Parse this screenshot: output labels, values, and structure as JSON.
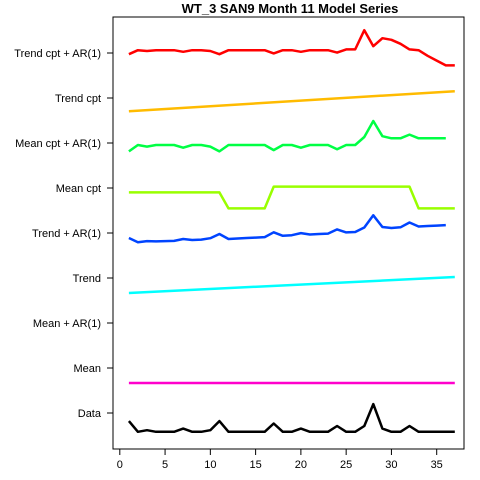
{
  "chart_data": {
    "type": "line",
    "title": "WT_3 SAN9 Month 11 Model Series",
    "xlabel": "",
    "ylabel": "",
    "xlim": [
      0,
      38
    ],
    "xticks": [
      0,
      5,
      10,
      15,
      20,
      25,
      30,
      35
    ],
    "grid": false,
    "series": [
      {
        "name": "Data",
        "color": "#000000",
        "x": [
          1,
          2,
          3,
          4,
          5,
          6,
          7,
          8,
          9,
          10,
          11,
          12,
          13,
          14,
          15,
          16,
          17,
          18,
          19,
          20,
          21,
          22,
          23,
          24,
          25,
          26,
          27,
          28,
          29,
          30,
          31,
          32,
          33,
          34,
          35,
          36,
          37
        ],
        "values": [
          0.87,
          0.2,
          0.3,
          0.2,
          0.2,
          0.2,
          0.4,
          0.2,
          0.2,
          0.3,
          0.87,
          0.2,
          0.2,
          0.2,
          0.2,
          0.2,
          0.72,
          0.2,
          0.2,
          0.4,
          0.2,
          0.2,
          0.2,
          0.56,
          0.2,
          0.2,
          0.56,
          1.93,
          0.4,
          0.2,
          0.2,
          0.56,
          0.2,
          0.2,
          0.2,
          0.2,
          0.2
        ]
      },
      {
        "name": "Mean",
        "color": "#ff00cc",
        "x": [
          1,
          37
        ],
        "values": [
          0.44,
          0.44
        ]
      },
      {
        "name": "Mean + AR(1)",
        "color": "#ffffff",
        "x": [],
        "values": []
      },
      {
        "name": "Trend",
        "color": "#00ffff",
        "x": [
          1,
          37
        ],
        "values": [
          0.44,
          1.44
        ]
      },
      {
        "name": "Trend + AR(1)",
        "color": "#0044ff",
        "x": [
          1,
          2,
          3,
          4,
          5,
          6,
          7,
          8,
          9,
          10,
          11,
          12,
          13,
          14,
          15,
          16,
          17,
          18,
          19,
          20,
          21,
          22,
          23,
          24,
          25,
          26,
          27,
          28,
          29,
          30,
          31,
          32,
          33,
          34,
          35,
          36
        ],
        "values": [
          1.06,
          0.8,
          0.87,
          0.85,
          0.87,
          0.88,
          1.0,
          0.94,
          0.96,
          1.05,
          1.31,
          1.0,
          1.03,
          1.06,
          1.09,
          1.12,
          1.42,
          1.2,
          1.24,
          1.37,
          1.28,
          1.31,
          1.34,
          1.6,
          1.41,
          1.44,
          1.72,
          2.48,
          1.75,
          1.69,
          1.73,
          2.03,
          1.78,
          1.81,
          1.84,
          1.87
        ]
      },
      {
        "name": "Mean cpt",
        "color": "#99ff00",
        "x": [
          1,
          11,
          12,
          16,
          17,
          32,
          33,
          37
        ],
        "values": [
          1.1,
          1.1,
          0.1,
          0.1,
          1.46,
          1.46,
          0.1,
          0.1
        ]
      },
      {
        "name": "Mean cpt + AR(1)",
        "color": "#00ff44",
        "x": [
          1,
          2,
          3,
          4,
          5,
          6,
          7,
          8,
          9,
          10,
          11,
          12,
          13,
          14,
          15,
          16,
          17,
          18,
          19,
          20,
          21,
          22,
          23,
          24,
          25,
          26,
          27,
          28,
          29,
          30,
          31,
          32,
          33,
          34,
          35,
          36
        ],
        "values": [
          0.85,
          1.25,
          1.15,
          1.25,
          1.25,
          1.25,
          1.08,
          1.25,
          1.25,
          1.15,
          0.85,
          1.25,
          1.25,
          1.25,
          1.25,
          1.25,
          0.93,
          1.25,
          1.25,
          1.08,
          1.25,
          1.25,
          1.25,
          0.98,
          1.25,
          1.25,
          1.75,
          2.75,
          1.8,
          1.67,
          1.67,
          1.9,
          1.67,
          1.67,
          1.67,
          1.67
        ]
      },
      {
        "name": "Trend cpt",
        "color": "#ffbb00",
        "x": [
          1,
          37
        ],
        "values": [
          0.55,
          1.8
        ]
      },
      {
        "name": "Trend cpt + AR(1)",
        "color": "#ff0000",
        "x": [
          1,
          2,
          3,
          4,
          5,
          6,
          7,
          8,
          9,
          10,
          11,
          12,
          13,
          14,
          15,
          16,
          17,
          18,
          19,
          20,
          21,
          22,
          23,
          24,
          25,
          26,
          27,
          28,
          29,
          30,
          31,
          32,
          33,
          34,
          35,
          36,
          37
        ],
        "values": [
          1.3,
          1.55,
          1.5,
          1.55,
          1.55,
          1.55,
          1.45,
          1.55,
          1.55,
          1.5,
          1.3,
          1.55,
          1.55,
          1.55,
          1.55,
          1.55,
          1.35,
          1.55,
          1.55,
          1.45,
          1.55,
          1.55,
          1.55,
          1.4,
          1.6,
          1.6,
          2.8,
          1.8,
          2.3,
          2.2,
          1.95,
          1.6,
          1.55,
          1.2,
          0.9,
          0.6,
          0.6
        ]
      }
    ]
  }
}
